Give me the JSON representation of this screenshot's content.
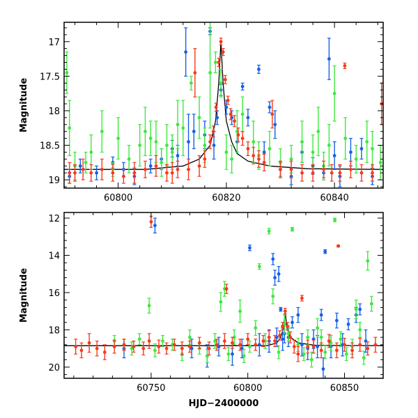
{
  "chart_data": [
    {
      "type": "scatter",
      "title": "",
      "xlabel": "",
      "ylabel": "Magnitude",
      "xlim": [
        60790,
        60849
      ],
      "ylim": [
        19.12,
        16.72
      ],
      "y_inverted": true,
      "grid": false,
      "xticks": [
        60800,
        60820,
        60840
      ],
      "yticks": [
        17,
        17.5,
        18,
        18.5,
        19
      ],
      "ytick_labels": [
        "17",
        "17.5",
        "18",
        "18.5",
        "19"
      ],
      "colors": {
        "blue": "#1560e8",
        "green": "#3ee83e",
        "red": "#f5391c",
        "model": "#000000"
      },
      "model_curve": {
        "x": [
          60790,
          60805,
          60812,
          60815,
          60817,
          60818,
          60818.6,
          60819,
          60819.4,
          60820,
          60821,
          60822,
          60824,
          60828,
          60835,
          60849
        ],
        "y": [
          18.85,
          18.85,
          18.8,
          18.7,
          18.5,
          18.15,
          17.6,
          17.0,
          17.6,
          18.15,
          18.45,
          18.62,
          18.73,
          18.8,
          18.84,
          18.85
        ]
      },
      "series": [
        {
          "color": "blue",
          "x": [
            60791,
            60793,
            60796,
            60799,
            60801,
            60803,
            60806,
            60808,
            60810,
            60811,
            60812.5,
            60813,
            60814,
            60816,
            60817,
            60817.7,
            60818.3,
            60819,
            60820,
            60821,
            60822,
            60823,
            60824,
            60826,
            60827,
            60828,
            60829,
            60830,
            60832,
            60834,
            60836,
            60838,
            60839,
            60840,
            60841,
            60843,
            60845,
            60847
          ],
          "y": [
            18.95,
            18.8,
            18.9,
            18.75,
            18.85,
            18.95,
            18.8,
            18.7,
            18.55,
            18.65,
            17.15,
            18.45,
            18.3,
            18.35,
            16.85,
            18.5,
            18.1,
            17.7,
            17.95,
            18.1,
            18.45,
            17.65,
            18.1,
            17.4,
            18.6,
            17.95,
            18.2,
            18.85,
            18.95,
            18.6,
            18.8,
            18.9,
            17.25,
            18.65,
            18.95,
            18.6,
            18.55,
            18.95
          ],
          "yerr": [
            0.1,
            0.1,
            0.1,
            0.08,
            0.1,
            0.12,
            0.1,
            0.15,
            0.12,
            0.15,
            0.35,
            0.4,
            0.25,
            0.2,
            0.05,
            0.2,
            0.1,
            0.08,
            0.1,
            0.1,
            0.15,
            0.05,
            0.12,
            0.06,
            0.15,
            0.08,
            0.2,
            0.1,
            0.12,
            0.15,
            0.12,
            0.1,
            0.3,
            0.2,
            0.15,
            0.2,
            0.15,
            0.12
          ]
        },
        {
          "color": "green",
          "x": [
            60790.5,
            60791,
            60792,
            60794,
            60795,
            60797,
            60799,
            60800,
            60802,
            60804,
            60805,
            60806,
            60807,
            60808,
            60809,
            60810,
            60811,
            60812,
            60813.5,
            60815,
            60816,
            60817,
            60818,
            60819,
            60820,
            60821,
            60822,
            60823,
            60825,
            60826,
            60828,
            60830,
            60832,
            60834,
            60836,
            60837,
            60838,
            60839,
            60840,
            60842,
            60844,
            60846,
            60847,
            60848.5
          ],
          "y": [
            17.45,
            18.25,
            18.8,
            18.75,
            18.6,
            18.3,
            18.85,
            18.4,
            18.7,
            18.5,
            18.3,
            18.4,
            18.45,
            18.75,
            18.5,
            18.6,
            18.2,
            18.25,
            17.6,
            18.1,
            18.5,
            17.45,
            17.3,
            17.6,
            18.6,
            18.7,
            18.3,
            18.05,
            18.45,
            18.65,
            18.55,
            18.75,
            18.7,
            18.45,
            18.6,
            18.3,
            18.8,
            18.5,
            17.75,
            18.4,
            18.7,
            18.45,
            18.55,
            18.75
          ],
          "yerr": [
            0.3,
            0.4,
            0.2,
            0.15,
            0.25,
            0.3,
            0.1,
            0.3,
            0.2,
            0.3,
            0.35,
            0.25,
            0.3,
            0.2,
            0.3,
            0.25,
            0.35,
            0.4,
            0.1,
            0.3,
            0.25,
            0.8,
            0.15,
            0.2,
            0.25,
            0.2,
            0.3,
            0.25,
            0.3,
            0.2,
            0.25,
            0.2,
            0.2,
            0.3,
            0.25,
            0.35,
            0.2,
            0.3,
            0.4,
            0.3,
            0.2,
            0.3,
            0.25,
            0.25
          ]
        },
        {
          "color": "red",
          "x": [
            60791,
            60792,
            60793.5,
            60795,
            60797,
            60799,
            60801,
            60803,
            60805,
            60807,
            60809,
            60810,
            60811,
            60813,
            60814.2,
            60815,
            60816,
            60817,
            60817.6,
            60818.1,
            60818.6,
            60819,
            60819.4,
            60819.8,
            60820.3,
            60820.8,
            60821.5,
            60822.2,
            60823,
            60824,
            60825,
            60826,
            60827,
            60828.5,
            60830,
            60832,
            60834,
            60836,
            60838,
            60839.5,
            60841,
            60841.9,
            60843,
            60845,
            60847,
            60848.7
          ],
          "y": [
            18.9,
            18.9,
            18.85,
            18.9,
            18.85,
            18.9,
            18.95,
            18.9,
            18.85,
            18.8,
            18.9,
            18.9,
            18.85,
            18.85,
            17.45,
            18.8,
            18.7,
            18.45,
            18.3,
            17.95,
            17.3,
            17.0,
            17.15,
            17.55,
            17.85,
            18.05,
            18.15,
            18.35,
            18.4,
            18.55,
            18.65,
            18.7,
            18.75,
            18.05,
            18.85,
            18.85,
            18.9,
            18.9,
            18.85,
            18.9,
            18.9,
            17.35,
            18.85,
            18.9,
            18.9,
            17.9
          ],
          "yerr": [
            0.15,
            0.12,
            0.15,
            0.12,
            0.15,
            0.12,
            0.1,
            0.15,
            0.12,
            0.15,
            0.12,
            0.15,
            0.12,
            0.15,
            0.35,
            0.15,
            0.12,
            0.1,
            0.08,
            0.06,
            0.06,
            0.05,
            0.05,
            0.06,
            0.06,
            0.08,
            0.08,
            0.1,
            0.1,
            0.1,
            0.12,
            0.12,
            0.12,
            0.2,
            0.12,
            0.12,
            0.12,
            0.12,
            0.12,
            0.12,
            0.12,
            0.04,
            0.12,
            0.12,
            0.12,
            0.3
          ]
        }
      ]
    },
    {
      "type": "scatter",
      "title": "",
      "xlabel": "HJD−2400000",
      "ylabel": "Magnitude",
      "xlim": [
        60705,
        60870
      ],
      "ylim": [
        20.6,
        11.7
      ],
      "y_inverted": true,
      "grid": false,
      "xticks": [
        60750,
        60800,
        60850
      ],
      "yticks": [
        12,
        14,
        16,
        18,
        20
      ],
      "ytick_labels": [
        "12",
        "14",
        "16",
        "18",
        "20"
      ],
      "colors": {
        "blue": "#1560e8",
        "green": "#3ee83e",
        "red": "#f5391c",
        "model": "#000000"
      },
      "model_curve": {
        "x": [
          60705,
          60810,
          60815,
          60817,
          60818.5,
          60819.3,
          60820.2,
          60822,
          60826,
          60835,
          60870
        ],
        "y": [
          18.85,
          18.85,
          18.7,
          18.4,
          17.9,
          17.0,
          17.9,
          18.4,
          18.7,
          18.83,
          18.85
        ]
      },
      "series": [
        {
          "color": "blue",
          "x": [
            60736,
            60752,
            60771,
            60779,
            60785,
            60792,
            60797,
            60801,
            60806,
            60811,
            60813,
            60814,
            60815,
            60816,
            60817,
            60818,
            60819,
            60821,
            60823,
            60826,
            60828,
            60831,
            60834,
            60836,
            60838,
            60839,
            60840,
            60843,
            60846,
            60849,
            60852,
            60856,
            60858,
            60861
          ],
          "y": [
            19.0,
            12.4,
            19.0,
            19.4,
            18.9,
            19.3,
            19.0,
            13.6,
            18.8,
            18.6,
            14.2,
            15.2,
            18.4,
            15.0,
            16.9,
            18.5,
            18.2,
            18.4,
            17.6,
            17.2,
            18.8,
            19.0,
            18.5,
            18.9,
            17.2,
            20.1,
            13.8,
            18.9,
            17.5,
            18.8,
            17.7,
            17.2,
            16.9,
            18.6
          ],
          "yerr": [
            0.5,
            0.4,
            0.5,
            0.6,
            0.5,
            0.6,
            0.5,
            0.15,
            0.6,
            0.6,
            0.3,
            0.4,
            0.5,
            0.4,
            0.1,
            0.6,
            0.5,
            0.5,
            0.3,
            0.4,
            0.6,
            0.6,
            0.5,
            0.6,
            0.3,
            0.6,
            0.1,
            0.6,
            0.4,
            0.6,
            0.3,
            0.4,
            0.3,
            0.6
          ]
        },
        {
          "color": "green",
          "x": [
            60731,
            60736,
            60740,
            60744,
            60749,
            60752,
            60756,
            60761,
            60766,
            60770,
            60775,
            60779,
            60783,
            60786,
            60788,
            60790,
            60793,
            60796,
            60798,
            60801,
            60804,
            60806,
            60809,
            60811,
            60813,
            60816,
            60819,
            60821,
            60823,
            60826,
            60829,
            60831,
            60833,
            60836,
            60838,
            60840,
            60843,
            60845,
            60848,
            60851,
            60854,
            60856,
            60858,
            60860,
            60862,
            60864
          ],
          "y": [
            18.6,
            18.8,
            19.0,
            18.5,
            16.7,
            19.1,
            18.6,
            18.8,
            19.3,
            18.4,
            19.0,
            19.4,
            18.6,
            16.5,
            15.8,
            19.3,
            18.4,
            17.0,
            19.4,
            18.9,
            17.9,
            14.6,
            18.6,
            12.7,
            16.2,
            19.2,
            17.7,
            18.2,
            12.6,
            18.8,
            19.3,
            18.4,
            19.6,
            17.9,
            18.4,
            19.2,
            18.7,
            12.1,
            18.5,
            19.3,
            18.9,
            16.9,
            18.0,
            19.5,
            14.3,
            16.6
          ],
          "yerr": [
            0.3,
            0.3,
            0.35,
            0.3,
            0.4,
            0.35,
            0.3,
            0.3,
            0.35,
            0.4,
            0.3,
            0.35,
            0.4,
            0.5,
            0.4,
            0.35,
            0.4,
            0.6,
            0.35,
            0.3,
            0.4,
            0.15,
            0.4,
            0.15,
            0.4,
            0.35,
            0.5,
            0.4,
            0.1,
            0.35,
            0.35,
            0.4,
            0.4,
            0.5,
            0.4,
            0.35,
            0.4,
            0.1,
            0.4,
            0.35,
            0.4,
            0.5,
            0.4,
            0.35,
            0.5,
            0.4
          ]
        },
        {
          "color": "red",
          "x": [
            60711,
            60714,
            60718,
            60722,
            60726,
            60731,
            60736,
            60741,
            60746,
            60749,
            60750,
            60754,
            60758,
            60762,
            60766,
            60770,
            60775,
            60780,
            60784,
            60788,
            60789,
            60792,
            60796,
            60800,
            60804,
            60808,
            60811,
            60814,
            60816.5,
            60818,
            60819.3,
            60820.5,
            60822,
            60824,
            60826,
            60828,
            60831,
            60834,
            60838,
            60842,
            60846,
            60846.8,
            60850,
            60854,
            60858,
            60862,
            60866
          ],
          "y": [
            18.9,
            19.1,
            18.7,
            19.0,
            19.2,
            18.9,
            18.8,
            18.9,
            19.0,
            18.6,
            12.2,
            18.9,
            19.0,
            18.8,
            19.0,
            18.9,
            18.7,
            19.0,
            18.8,
            18.6,
            15.8,
            18.7,
            18.8,
            18.5,
            18.8,
            18.6,
            18.4,
            18.6,
            18.3,
            17.8,
            17.0,
            17.8,
            18.4,
            18.9,
            19.3,
            16.3,
            18.9,
            18.9,
            19.1,
            18.6,
            19.1,
            13.5,
            18.8,
            19.1,
            18.8,
            19.0,
            18.8
          ],
          "yerr": [
            0.4,
            0.4,
            0.5,
            0.4,
            0.4,
            0.35,
            0.3,
            0.3,
            0.35,
            0.4,
            0.3,
            0.35,
            0.3,
            0.3,
            0.35,
            0.3,
            0.3,
            0.35,
            0.3,
            0.4,
            0.25,
            0.3,
            0.3,
            0.3,
            0.3,
            0.3,
            0.35,
            0.3,
            0.25,
            0.2,
            0.15,
            0.2,
            0.3,
            0.35,
            0.4,
            0.15,
            0.35,
            0.35,
            0.4,
            0.35,
            0.4,
            0.05,
            0.35,
            0.4,
            0.35,
            0.35,
            0.4
          ]
        }
      ]
    }
  ]
}
